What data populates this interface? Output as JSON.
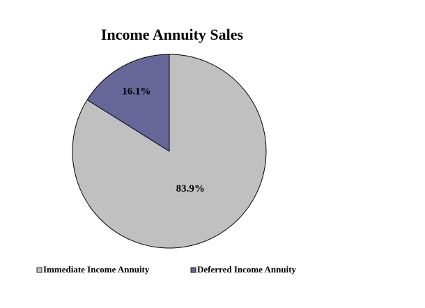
{
  "chart_data": {
    "type": "pie",
    "title": "Income Annuity Sales",
    "categories": [
      "Immediate Income Annuity",
      "Deferred Income Annuity"
    ],
    "values": [
      83.9,
      16.1
    ],
    "value_labels": [
      "83.9%",
      "16.1%"
    ],
    "colors": [
      "#c0c0c0",
      "#666699"
    ],
    "legend": "bottom"
  }
}
